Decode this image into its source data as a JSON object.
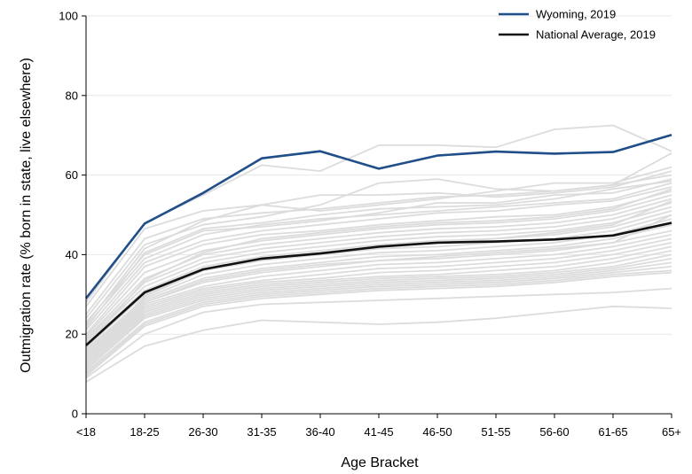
{
  "chart_data": {
    "type": "line",
    "title": "",
    "xlabel": "Age Bracket",
    "ylabel": "Outmigration rate (% born in state, live elsewhere)",
    "ylim": [
      0,
      100
    ],
    "yticks": [
      0,
      20,
      40,
      60,
      80,
      100
    ],
    "categories": [
      "<18",
      "18-25",
      "26-30",
      "31-35",
      "36-40",
      "41-45",
      "46-50",
      "51-55",
      "56-60",
      "61-65",
      "65+"
    ],
    "grid": "horizontal",
    "legend_position": "top-right",
    "highlight_series": [
      {
        "name": "Wyoming, 2019",
        "color": "#1f4e89",
        "values": [
          29,
          47.8,
          55.5,
          64.2,
          66,
          61.6,
          64.9,
          65.9,
          65.4,
          65.8,
          70.1
        ]
      },
      {
        "name": "National Average, 2019",
        "color": "#111111",
        "values": [
          17.2,
          30.5,
          36.3,
          39,
          40.3,
          42,
          43,
          43.3,
          43.8,
          44.8,
          48
        ]
      }
    ],
    "background_series_color": "#dcdcdc",
    "background_series": [
      {
        "values": [
          28,
          48,
          55,
          62.5,
          61,
          67.5,
          67.5,
          67,
          71.5,
          72.5,
          66
        ]
      },
      {
        "values": [
          27,
          46.5,
          51,
          52.5,
          51,
          52.5,
          54,
          56,
          58,
          58,
          62
        ]
      },
      {
        "values": [
          25,
          44,
          49,
          50.5,
          51.5,
          53,
          54.5,
          55,
          56,
          57.5,
          60
        ]
      },
      {
        "values": [
          24,
          42.5,
          47.5,
          49.5,
          52.5,
          58,
          59,
          56.5,
          56,
          57.5,
          65.5
        ]
      },
      {
        "values": [
          23,
          40,
          46,
          47,
          48.5,
          50.5,
          53,
          53,
          55,
          55.5,
          59
        ]
      },
      {
        "values": [
          22,
          39,
          45,
          47.5,
          49,
          50,
          51,
          52,
          53,
          54,
          58
        ]
      },
      {
        "values": [
          21,
          38,
          43.5,
          46,
          47.5,
          49,
          50.5,
          51,
          52.5,
          53.5,
          57
        ]
      },
      {
        "values": [
          20,
          37,
          42.5,
          45,
          46,
          47.5,
          48.5,
          49.5,
          50,
          52,
          56
        ]
      },
      {
        "values": [
          19.5,
          35.5,
          41,
          43.5,
          45,
          46.5,
          47.5,
          48,
          49,
          51,
          55
        ]
      },
      {
        "values": [
          19,
          34,
          40,
          42.5,
          44,
          45.5,
          46.5,
          47,
          48,
          50,
          54
        ]
      },
      {
        "values": [
          18.5,
          33,
          39,
          41.5,
          43,
          44.5,
          45.5,
          46,
          47,
          49,
          53
        ]
      },
      {
        "values": [
          18,
          32,
          38,
          40.5,
          42,
          43.5,
          44.5,
          45,
          46,
          48,
          52
        ]
      },
      {
        "values": [
          17.5,
          31,
          37,
          39.5,
          41,
          42.5,
          43.5,
          44,
          45,
          47,
          51
        ]
      },
      {
        "values": [
          16.5,
          30,
          36,
          38.5,
          40,
          41.5,
          42,
          43,
          44,
          46,
          50
        ]
      },
      {
        "values": [
          16,
          29,
          35,
          37.5,
          39,
          40.5,
          41,
          42,
          43,
          45,
          49
        ]
      },
      {
        "values": [
          15.5,
          28.5,
          34,
          36.5,
          38,
          39.5,
          40,
          41,
          42,
          44,
          47.5
        ]
      },
      {
        "values": [
          15,
          28,
          33,
          35.5,
          37,
          38.5,
          39,
          40,
          41,
          43,
          46
        ]
      },
      {
        "values": [
          14.5,
          27.5,
          32,
          34.5,
          36,
          37.5,
          38,
          39,
          40,
          42,
          45
        ]
      },
      {
        "values": [
          14,
          27,
          31.5,
          33.5,
          35,
          36.5,
          37,
          38,
          39,
          41,
          44
        ]
      },
      {
        "values": [
          13.5,
          26.5,
          31,
          33,
          34,
          35.5,
          36,
          37,
          38,
          40,
          43
        ]
      },
      {
        "values": [
          13,
          26,
          30.5,
          32.5,
          33.5,
          34.5,
          35,
          36,
          37,
          39,
          42
        ]
      },
      {
        "values": [
          12.5,
          25.5,
          30,
          32,
          33,
          34,
          34.5,
          35,
          36,
          38,
          41
        ]
      },
      {
        "values": [
          12,
          25,
          29.5,
          31.5,
          32.5,
          33.5,
          34,
          34.5,
          35.5,
          37,
          40
        ]
      },
      {
        "values": [
          11.5,
          24.5,
          29,
          31,
          32,
          33,
          33.5,
          34,
          35,
          36.5,
          39
        ]
      },
      {
        "values": [
          11,
          24,
          28.5,
          30.5,
          31.5,
          32.5,
          33,
          33.5,
          34.5,
          36,
          38
        ]
      },
      {
        "values": [
          10.5,
          23,
          28,
          30,
          31,
          32,
          32.5,
          33,
          34,
          35.5,
          37
        ]
      },
      {
        "values": [
          10,
          22.5,
          27.5,
          29.5,
          30.5,
          31.5,
          32,
          32.5,
          33.5,
          35,
          36
        ]
      },
      {
        "values": [
          9.5,
          22,
          27,
          29,
          30,
          31,
          31.5,
          32,
          33,
          34.5,
          35.5
        ]
      },
      {
        "values": [
          9,
          20,
          25.5,
          27.5,
          28,
          28.5,
          29,
          29.5,
          30,
          30.5,
          31.5
        ]
      },
      {
        "values": [
          8,
          17,
          21,
          23.5,
          23,
          22.5,
          23,
          24,
          25.5,
          27,
          26.5
        ]
      },
      {
        "values": [
          22.5,
          41.5,
          48.5,
          52.5,
          55,
          55,
          55.5,
          54.5,
          55.5,
          57,
          61
        ]
      },
      {
        "values": [
          21.5,
          40.5,
          46.5,
          48,
          50,
          51.5,
          52,
          52.5,
          54,
          56.5,
          58.5
        ]
      },
      {
        "values": [
          17,
          33.5,
          40.5,
          44,
          45.5,
          47,
          48,
          48.5,
          49.5,
          51.5,
          56.5
        ]
      },
      {
        "values": [
          14,
          29.5,
          36,
          39,
          40.5,
          42,
          43,
          44,
          45.5,
          47.5,
          53.5
        ]
      },
      {
        "values": [
          12,
          28,
          33.5,
          36,
          37.5,
          38.5,
          39.5,
          40.5,
          41.5,
          43,
          50
        ]
      }
    ]
  }
}
